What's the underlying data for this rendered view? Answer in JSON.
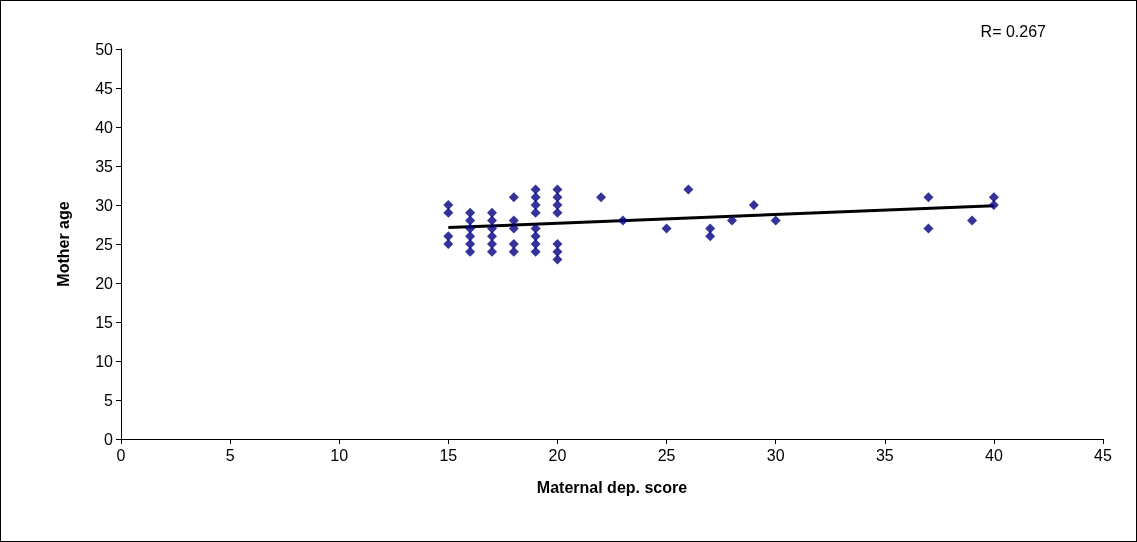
{
  "chart_data": {
    "type": "scatter",
    "xlabel": "Maternal dep. score",
    "ylabel": "Mother age",
    "annotations": [
      "R= 0.267"
    ],
    "xlim": [
      0,
      45
    ],
    "xticks": [
      0,
      5,
      10,
      15,
      20,
      25,
      30,
      35,
      40,
      45
    ],
    "ylim": [
      0,
      50
    ],
    "yticks": [
      0,
      5,
      10,
      15,
      20,
      25,
      30,
      35,
      40,
      45,
      50
    ],
    "grid": false,
    "marker": "diamond",
    "series": [
      {
        "color": "#000080",
        "x": [
          15,
          15,
          15,
          15,
          16,
          16,
          16,
          16,
          16,
          16,
          17,
          17,
          17,
          17,
          17,
          17,
          18,
          18,
          18,
          18,
          18,
          19,
          19,
          19,
          19,
          19,
          19,
          19,
          19,
          20,
          20,
          20,
          20,
          20,
          20,
          20,
          22,
          23,
          25,
          26,
          27,
          27,
          28,
          29,
          30,
          37,
          37,
          39,
          40,
          40
        ],
        "values": [
          30,
          29,
          26,
          25,
          29,
          28,
          27,
          26,
          25,
          24,
          29,
          28,
          27,
          26,
          25,
          24,
          31,
          28,
          27,
          25,
          24,
          32,
          31,
          30,
          29,
          27,
          26,
          25,
          24,
          32,
          31,
          30,
          29,
          25,
          24,
          23,
          31,
          28,
          27,
          32,
          27,
          26,
          28,
          30,
          28,
          31,
          27,
          28,
          31,
          30
        ]
      },
      {
        "type": "line",
        "color": "#000000",
        "x": [
          15,
          40
        ],
        "values": [
          27.1,
          29.9
        ],
        "marker": "none",
        "line_style": "solid"
      }
    ]
  }
}
